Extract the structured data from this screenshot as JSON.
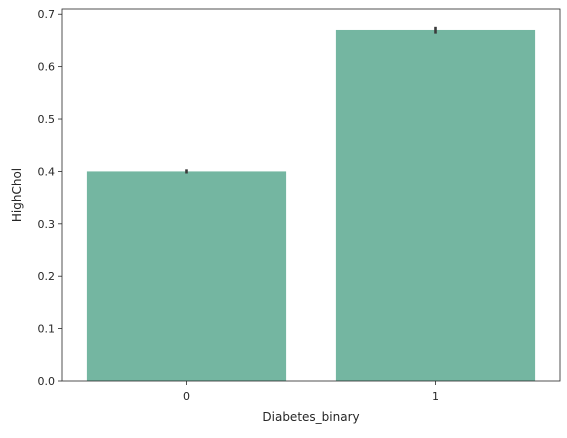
{
  "chart_data": {
    "type": "bar",
    "title": "",
    "xlabel": "Diabetes_binary",
    "ylabel": "HighChol",
    "categories": [
      "0",
      "1"
    ],
    "values": [
      0.4,
      0.67
    ],
    "errors": [
      {
        "low": 0.396,
        "high": 0.404
      },
      {
        "low": 0.663,
        "high": 0.676
      }
    ],
    "ylim": [
      0,
      0.71
    ],
    "yticks": [
      0.0,
      0.1,
      0.2,
      0.3,
      0.4,
      0.5,
      0.6,
      0.7
    ],
    "ytick_labels": [
      "0.0",
      "0.1",
      "0.2",
      "0.3",
      "0.4",
      "0.5",
      "0.6",
      "0.7"
    ],
    "grid": false,
    "legend": "none",
    "colors": {
      "bar": "#74b6a1",
      "errorbar": "#3b3b3b",
      "axis": "#262626"
    }
  }
}
